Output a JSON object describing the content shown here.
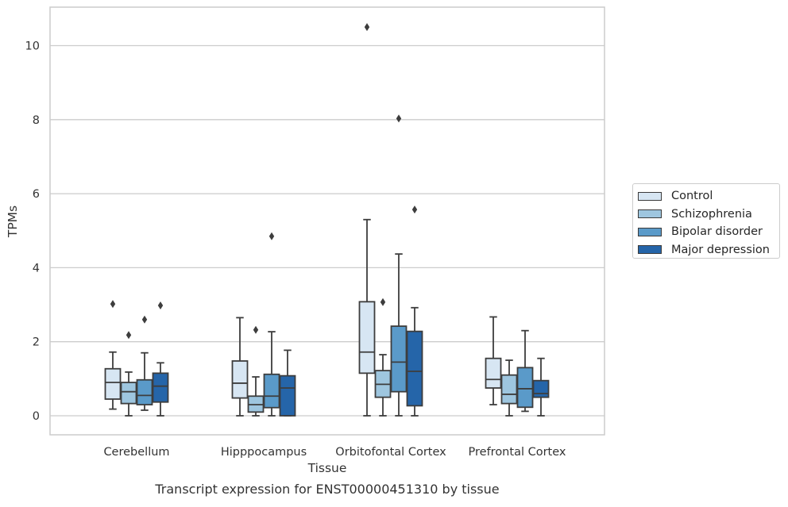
{
  "chart_data": {
    "type": "box",
    "title": "Transcript expression for ENST00000451310 by tissue",
    "xlabel": "Tissue",
    "ylabel": "TPMs",
    "ylim": [
      -0.5,
      11
    ],
    "yticks": [
      0,
      2,
      4,
      6,
      8,
      10
    ],
    "grid": "horizontal",
    "legend_position": "right",
    "categories": [
      "Cerebellum",
      "Hipppocampus",
      "Orbitofontal Cortex",
      "Prefrontal Cortex"
    ],
    "series": [
      {
        "name": "Control",
        "color": "#d7e6f3",
        "boxes": [
          {
            "whisker_low": 0.18,
            "q1": 0.45,
            "median": 0.9,
            "q3": 1.27,
            "whisker_high": 1.72,
            "outliers": [
              3.02
            ]
          },
          {
            "whisker_low": 0.0,
            "q1": 0.48,
            "median": 0.88,
            "q3": 1.48,
            "whisker_high": 2.65,
            "outliers": []
          },
          {
            "whisker_low": 0.0,
            "q1": 1.15,
            "median": 1.72,
            "q3": 3.08,
            "whisker_high": 5.3,
            "outliers": [
              10.5
            ]
          },
          {
            "whisker_low": 0.3,
            "q1": 0.75,
            "median": 0.98,
            "q3": 1.55,
            "whisker_high": 2.67,
            "outliers": []
          }
        ]
      },
      {
        "name": "Schizophrenia",
        "color": "#9ec6df",
        "boxes": [
          {
            "whisker_low": 0.0,
            "q1": 0.33,
            "median": 0.65,
            "q3": 0.9,
            "whisker_high": 1.18,
            "outliers": [
              2.18
            ]
          },
          {
            "whisker_low": 0.0,
            "q1": 0.1,
            "median": 0.3,
            "q3": 0.53,
            "whisker_high": 1.05,
            "outliers": [
              2.32
            ]
          },
          {
            "whisker_low": 0.0,
            "q1": 0.5,
            "median": 0.85,
            "q3": 1.22,
            "whisker_high": 1.65,
            "outliers": [
              3.07
            ]
          },
          {
            "whisker_low": 0.0,
            "q1": 0.33,
            "median": 0.58,
            "q3": 1.1,
            "whisker_high": 1.5,
            "outliers": []
          }
        ]
      },
      {
        "name": "Bipolar disorder",
        "color": "#5a9ac9",
        "boxes": [
          {
            "whisker_low": 0.15,
            "q1": 0.3,
            "median": 0.55,
            "q3": 0.97,
            "whisker_high": 1.7,
            "outliers": [
              2.6
            ]
          },
          {
            "whisker_low": 0.0,
            "q1": 0.22,
            "median": 0.53,
            "q3": 1.12,
            "whisker_high": 2.27,
            "outliers": [
              4.85
            ]
          },
          {
            "whisker_low": 0.0,
            "q1": 0.65,
            "median": 1.45,
            "q3": 2.42,
            "whisker_high": 4.37,
            "outliers": [
              8.03
            ]
          },
          {
            "whisker_low": 0.12,
            "q1": 0.23,
            "median": 0.73,
            "q3": 1.3,
            "whisker_high": 2.3,
            "outliers": []
          }
        ]
      },
      {
        "name": "Major depression",
        "color": "#2565a9",
        "boxes": [
          {
            "whisker_low": 0.0,
            "q1": 0.37,
            "median": 0.8,
            "q3": 1.15,
            "whisker_high": 1.43,
            "outliers": [
              2.98
            ]
          },
          {
            "whisker_low": 0.0,
            "q1": 0.0,
            "median": 0.75,
            "q3": 1.08,
            "whisker_high": 1.77,
            "outliers": []
          },
          {
            "whisker_low": 0.0,
            "q1": 0.27,
            "median": 1.2,
            "q3": 2.28,
            "whisker_high": 2.92,
            "outliers": [
              5.57
            ]
          },
          {
            "whisker_low": 0.0,
            "q1": 0.5,
            "median": 0.6,
            "q3": 0.95,
            "whisker_high": 1.55,
            "outliers": []
          }
        ]
      }
    ]
  }
}
